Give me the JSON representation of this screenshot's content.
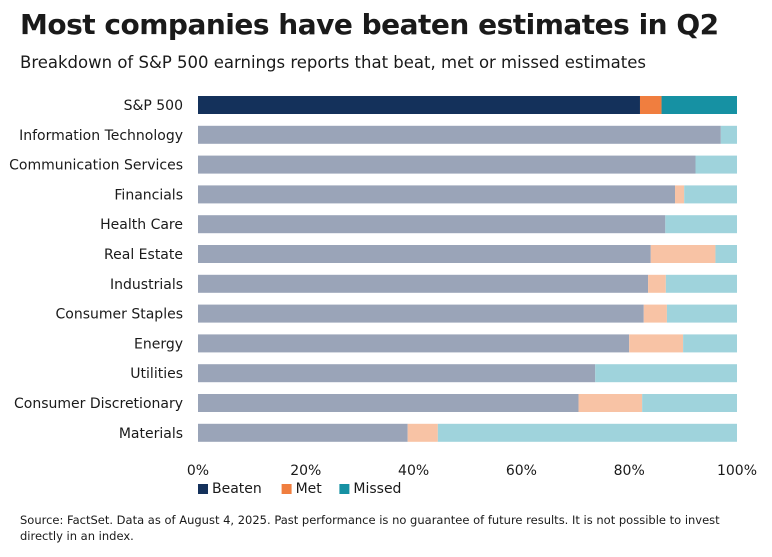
{
  "header": {
    "title": "Most companies have beaten estimates in Q2",
    "subtitle": "Breakdown of S&P 500 earnings reports that beat, met or missed estimates"
  },
  "footnote": "Source: FactSet. Data as of August 4, 2025. Past performance is no guarantee of future results. It is not possible to invest directly in an index.",
  "chart_data": {
    "type": "bar",
    "orientation": "horizontal",
    "stacked": true,
    "title": "Most companies have beaten estimates in Q2",
    "subtitle": "Breakdown of S&P 500 earnings reports that beat, met or missed estimates",
    "categories": [
      "S&P 500",
      "Information Technology",
      "Communication Services",
      "Financials",
      "Health Care",
      "Real Estate",
      "Industrials",
      "Consumer Staples",
      "Energy",
      "Utilities",
      "Consumer Discretionary",
      "Materials"
    ],
    "series": [
      {
        "name": "Beaten",
        "values": [
          82,
          97,
          92.3,
          88.5,
          86.7,
          84,
          83.5,
          82.7,
          80,
          73.7,
          70.6,
          38.9
        ]
      },
      {
        "name": "Met",
        "values": [
          4,
          0,
          0,
          1.7,
          0,
          12,
          3.3,
          4.3,
          10,
          0,
          11.8,
          5.6
        ]
      },
      {
        "name": "Missed",
        "values": [
          14,
          3,
          7.7,
          9.8,
          13.3,
          4,
          13.2,
          13,
          10,
          26.3,
          17.6,
          55.5
        ]
      }
    ],
    "xlim": [
      0,
      100
    ],
    "x_ticks": [
      "0%",
      "20%",
      "40%",
      "60%",
      "80%",
      "100%"
    ],
    "legend": {
      "placement": "bottom-left",
      "entries": [
        "Beaten",
        "Met",
        "Missed"
      ]
    },
    "grid": false,
    "colors": {
      "highlight": {
        "Beaten": "#14315b",
        "Met": "#f07e3f",
        "Missed": "#1691a3"
      },
      "default": {
        "Beaten": "#9aa4b8",
        "Met": "#f8c3a5",
        "Missed": "#9fd3dc"
      }
    },
    "highlight_category": "S&P 500"
  }
}
